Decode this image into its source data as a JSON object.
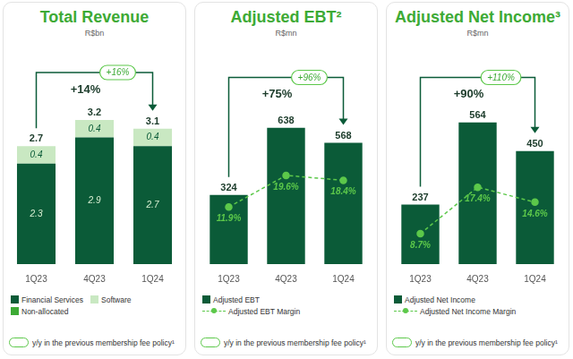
{
  "chart_data": [
    {
      "type": "bar",
      "title": "Total Revenue",
      "subtitle": "R$bn",
      "categories": [
        "1Q23",
        "4Q23",
        "1Q24"
      ],
      "series": [
        {
          "name": "Financial Services",
          "color": "#0b5b38",
          "values": [
            2.3,
            2.9,
            2.7
          ]
        },
        {
          "name": "Software",
          "color": "#c9e8c2",
          "values": [
            0.4,
            0.4,
            0.4
          ]
        },
        {
          "name": "Non-allocated",
          "color": "#3daa35",
          "values": [
            null,
            null,
            null
          ]
        }
      ],
      "totals": [
        2.7,
        3.2,
        3.1
      ],
      "stacked": true,
      "data_labels": true,
      "grid": false,
      "legend": "bottom",
      "tick_labels": "x",
      "ylim": [
        0,
        5
      ],
      "annotations": {
        "change": "+14%",
        "previous_policy_change": "+16%",
        "footnote": "y/y in the previous membership fee policy¹"
      }
    },
    {
      "type": "bar",
      "title": "Adjusted EBT²",
      "subtitle": "R$mn",
      "categories": [
        "1Q23",
        "4Q23",
        "1Q24"
      ],
      "series": [
        {
          "name": "Adjusted EBT",
          "type": "bar",
          "color": "#0b5b38",
          "values": [
            324,
            638,
            568
          ]
        },
        {
          "name": "Adjusted EBT Margin",
          "type": "line",
          "axis": "y2",
          "color": "#5cc84a",
          "line_style": "dashed",
          "marker": "circle",
          "values": [
            11.9,
            19.6,
            18.4
          ],
          "value_labels": [
            "11.9%",
            "19.6%",
            "18.4%"
          ]
        }
      ],
      "data_labels": true,
      "grid": false,
      "legend": "bottom",
      "tick_labels": "x",
      "ylim": [
        0,
        1000
      ],
      "y2lim": [
        -2,
        50
      ],
      "annotations": {
        "change": "+75%",
        "previous_policy_change": "+96%",
        "footnote": "y/y in the previous membership fee policy¹"
      }
    },
    {
      "type": "bar",
      "title": "Adjusted Net Income³",
      "subtitle": "R$mn",
      "categories": [
        "1Q23",
        "4Q23",
        "1Q24"
      ],
      "series": [
        {
          "name": "Adjusted Net Income",
          "type": "bar",
          "color": "#0b5b38",
          "values": [
            237,
            564,
            450
          ]
        },
        {
          "name": "Adjusted Net Income Margin",
          "type": "line",
          "axis": "y2",
          "color": "#5cc84a",
          "line_style": "dashed",
          "marker": "circle",
          "values": [
            8.7,
            17.4,
            14.6
          ],
          "value_labels": [
            "8.7%",
            "17.4%",
            "14.6%"
          ]
        }
      ],
      "data_labels": true,
      "grid": false,
      "legend": "bottom",
      "tick_labels": "x",
      "ylim": [
        0,
        850
      ],
      "y2lim": [
        3,
        43
      ],
      "annotations": {
        "change": "+90%",
        "previous_policy_change": "+110%",
        "footnote": "y/y in the previous membership fee policy¹"
      }
    }
  ]
}
